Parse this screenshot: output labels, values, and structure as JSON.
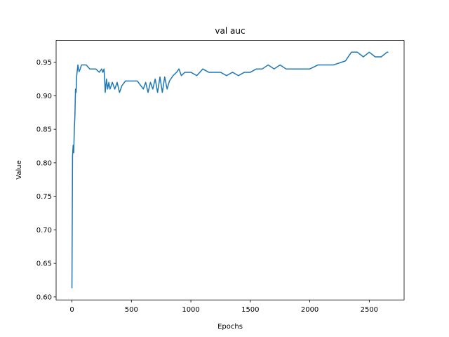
{
  "chart_data": {
    "type": "line",
    "title": "val auc",
    "x_label": "Epochs",
    "y_label": "Value",
    "x": [
      0,
      5,
      10,
      15,
      20,
      25,
      30,
      35,
      40,
      50,
      60,
      70,
      80,
      100,
      120,
      150,
      200,
      230,
      250,
      260,
      270,
      280,
      290,
      300,
      310,
      320,
      340,
      360,
      380,
      400,
      420,
      450,
      500,
      550,
      600,
      620,
      640,
      660,
      680,
      700,
      720,
      740,
      760,
      780,
      800,
      820,
      850,
      880,
      900,
      920,
      950,
      1000,
      1050,
      1100,
      1150,
      1200,
      1250,
      1300,
      1350,
      1400,
      1450,
      1500,
      1550,
      1600,
      1650,
      1700,
      1750,
      1800,
      2000,
      2070,
      2200,
      2300,
      2350,
      2400,
      2450,
      2500,
      2550,
      2600,
      2650,
      2660
    ],
    "series": [
      {
        "name": "val auc",
        "color": "#1f77b4",
        "values": [
          0.613,
          0.81,
          0.826,
          0.815,
          0.85,
          0.87,
          0.91,
          0.905,
          0.93,
          0.946,
          0.936,
          0.94,
          0.946,
          0.946,
          0.946,
          0.94,
          0.94,
          0.935,
          0.94,
          0.935,
          0.94,
          0.905,
          0.925,
          0.91,
          0.92,
          0.91,
          0.92,
          0.91,
          0.92,
          0.905,
          0.915,
          0.922,
          0.922,
          0.922,
          0.91,
          0.92,
          0.905,
          0.92,
          0.91,
          0.925,
          0.905,
          0.928,
          0.905,
          0.928,
          0.91,
          0.922,
          0.93,
          0.935,
          0.94,
          0.93,
          0.935,
          0.935,
          0.93,
          0.94,
          0.935,
          0.935,
          0.935,
          0.93,
          0.935,
          0.93,
          0.935,
          0.935,
          0.94,
          0.94,
          0.946,
          0.94,
          0.946,
          0.94,
          0.94,
          0.946,
          0.946,
          0.952,
          0.965,
          0.965,
          0.958,
          0.965,
          0.958,
          0.958,
          0.965,
          0.965
        ]
      }
    ],
    "xlim": [
      -133,
      2793
    ],
    "ylim": [
      0.5955,
      0.9825
    ],
    "xticks": [
      0,
      500,
      1000,
      1500,
      2000,
      2500
    ],
    "yticks": [
      {
        "value": 0.6,
        "label": "0.60"
      },
      {
        "value": 0.65,
        "label": "0.65"
      },
      {
        "value": 0.7,
        "label": "0.70"
      },
      {
        "value": 0.75,
        "label": "0.75"
      },
      {
        "value": 0.8,
        "label": "0.80"
      },
      {
        "value": 0.85,
        "label": "0.85"
      },
      {
        "value": 0.9,
        "label": "0.90"
      },
      {
        "value": 0.95,
        "label": "0.95"
      }
    ],
    "grid": false
  }
}
